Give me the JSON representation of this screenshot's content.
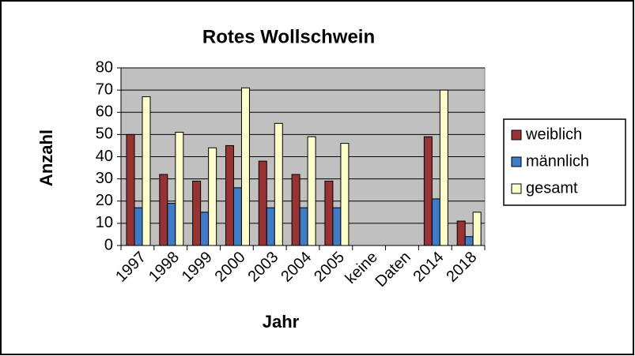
{
  "chart_data": {
    "type": "bar",
    "title": "Rotes Wollschwein",
    "xlabel": "Jahr",
    "ylabel": "Anzahl",
    "categories": [
      "1997",
      "1998",
      "1999",
      "2000",
      "2003",
      "2004",
      "2005",
      "keine",
      "Daten",
      "2014",
      "2018"
    ],
    "series": [
      {
        "name": "weiblich",
        "color": "#993333",
        "values": [
          50,
          32,
          29,
          45,
          38,
          32,
          29,
          null,
          null,
          49,
          11
        ]
      },
      {
        "name": "männlich",
        "color": "#3d7cc9",
        "values": [
          17,
          19,
          15,
          26,
          17,
          17,
          17,
          null,
          null,
          21,
          4
        ]
      },
      {
        "name": "gesamt",
        "color": "#ffffcc",
        "values": [
          67,
          51,
          44,
          71,
          55,
          49,
          46,
          null,
          null,
          70,
          15
        ]
      }
    ],
    "ylim": [
      0,
      80
    ],
    "yticks": [
      0,
      10,
      20,
      30,
      40,
      50,
      60,
      70,
      80
    ],
    "grid": true,
    "legend": "right"
  }
}
